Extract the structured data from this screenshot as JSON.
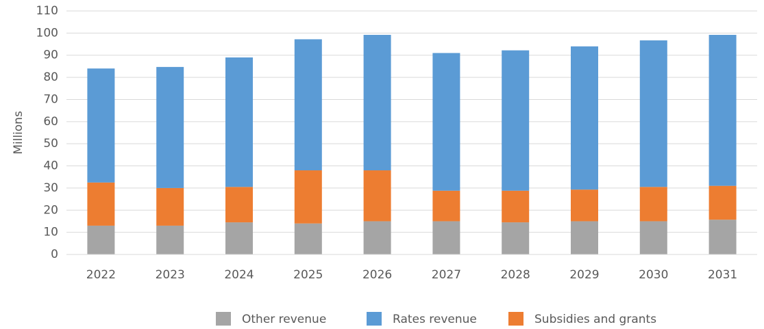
{
  "chart_data": {
    "type": "stacked_bar",
    "categories": [
      "2022",
      "2023",
      "2024",
      "2025",
      "2026",
      "2027",
      "2028",
      "2029",
      "2030",
      "2031"
    ],
    "y_label": "Millions",
    "series": [
      {
        "name": "Other revenue",
        "color": "#a5a5a5",
        "values": [
          13,
          13,
          14.5,
          14,
          15,
          15,
          14.5,
          15,
          15,
          15.7
        ]
      },
      {
        "name": "Rates revenue",
        "color": "#5b9bd5",
        "values": [
          51.5,
          54.7,
          58.5,
          59.2,
          61.2,
          62.2,
          63.4,
          64.7,
          66.2,
          68.2
        ]
      },
      {
        "name": "Subsidies and grants",
        "color": "#ed7d31",
        "values": [
          19.5,
          17,
          16,
          24,
          23,
          13.8,
          14.3,
          14.3,
          15.5,
          15.3
        ]
      }
    ],
    "ylim": [
      0,
      110
    ],
    "yticks": [
      0,
      10,
      20,
      30,
      40,
      50,
      60,
      70,
      80,
      90,
      100,
      110
    ],
    "grid": true
  }
}
